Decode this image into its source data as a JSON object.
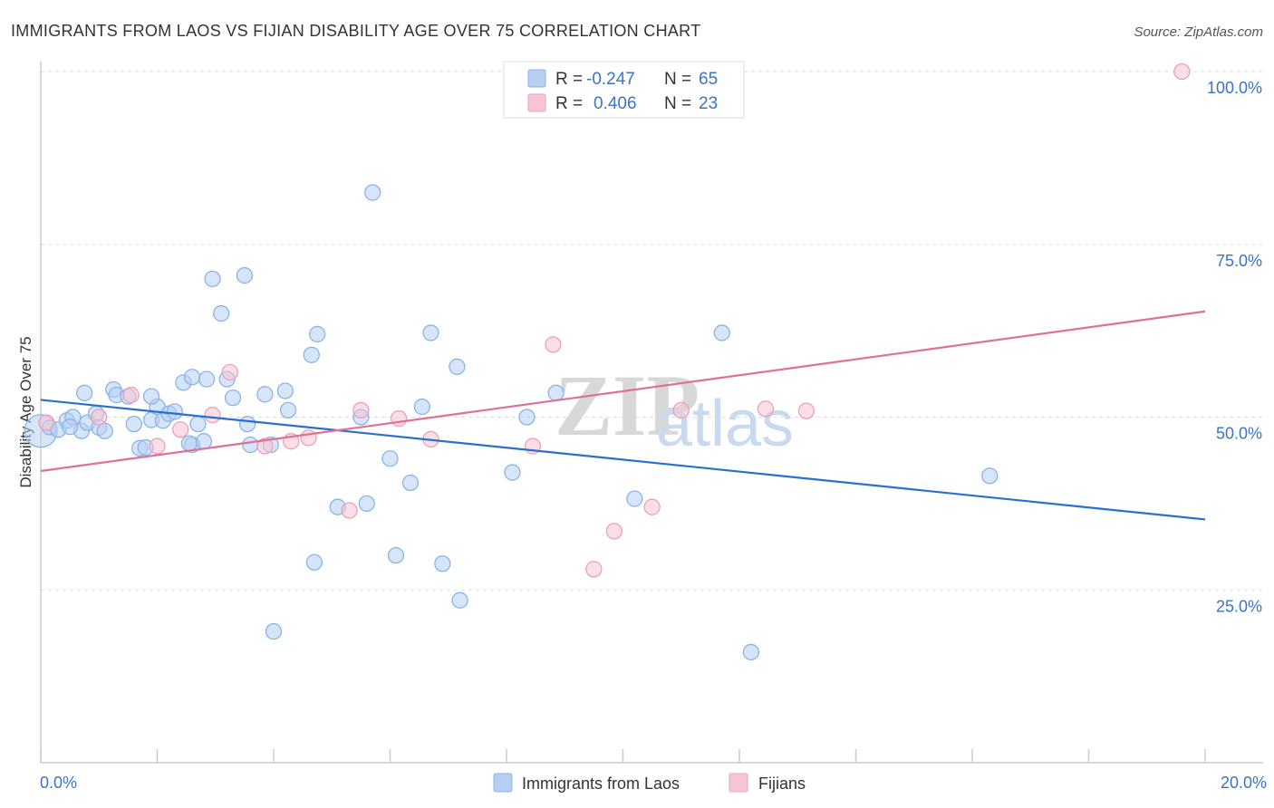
{
  "chart_data": {
    "type": "scatter",
    "title": "IMMIGRANTS FROM LAOS VS FIJIAN DISABILITY AGE OVER 75 CORRELATION CHART",
    "source": "Source: ZipAtlas.com",
    "xlabel": "",
    "ylabel": "Disability Age Over 75",
    "xlim": [
      0,
      20
    ],
    "ylim": [
      0,
      102
    ],
    "x_tick_labels": [
      "0.0%",
      "20.0%"
    ],
    "y_ticks": [
      25,
      50,
      75,
      100
    ],
    "y_tick_labels": [
      "25.0%",
      "50.0%",
      "75.0%",
      "100.0%"
    ],
    "grid": true,
    "watermark": {
      "zip": "ZIP",
      "atlas": "atlas"
    },
    "legend_top": [
      {
        "r_label": "R =",
        "r_value": "-0.247",
        "n_label": "N =",
        "n_value": "65"
      },
      {
        "r_label": "R =",
        "r_value": "0.406",
        "n_label": "N =",
        "n_value": "23"
      }
    ],
    "series": [
      {
        "name": "Immigrants from Laos",
        "color": "#8ab4e8",
        "fill": "#b7d0f2",
        "line_color": "#2a6fd0",
        "trend": {
          "x0": 0,
          "y0": 52.5,
          "x1": 20,
          "y1": 35.2
        },
        "points": [
          [
            0.0,
            48.0,
            22
          ],
          [
            0.15,
            48.5,
            12
          ],
          [
            0.3,
            48.2,
            10
          ],
          [
            0.45,
            49.5,
            10
          ],
          [
            0.55,
            50.0,
            10
          ],
          [
            0.7,
            48.0,
            10
          ],
          [
            0.8,
            49.2,
            10
          ],
          [
            0.95,
            50.5,
            10
          ],
          [
            1.0,
            48.5,
            10
          ],
          [
            0.75,
            53.5,
            10
          ],
          [
            1.25,
            54.0,
            10
          ],
          [
            1.3,
            53.2,
            10
          ],
          [
            1.5,
            53.0,
            10
          ],
          [
            1.6,
            49.0,
            10
          ],
          [
            1.7,
            45.5,
            10
          ],
          [
            1.8,
            45.6,
            10
          ],
          [
            1.9,
            49.6,
            10
          ],
          [
            2.0,
            51.5,
            10
          ],
          [
            2.1,
            49.5,
            10
          ],
          [
            2.2,
            50.5,
            10
          ],
          [
            2.3,
            50.8,
            10
          ],
          [
            2.45,
            55.0,
            10
          ],
          [
            2.6,
            46.0,
            10
          ],
          [
            2.6,
            55.8,
            10
          ],
          [
            2.7,
            49.0,
            10
          ],
          [
            2.8,
            46.5,
            10
          ],
          [
            2.85,
            55.5,
            10
          ],
          [
            2.95,
            70.0,
            10
          ],
          [
            3.1,
            65.0,
            10
          ],
          [
            3.2,
            55.5,
            10
          ],
          [
            3.3,
            52.8,
            10
          ],
          [
            3.5,
            70.5,
            10
          ],
          [
            3.55,
            49.0,
            10
          ],
          [
            3.6,
            46.0,
            10
          ],
          [
            3.85,
            53.3,
            10
          ],
          [
            3.95,
            46.0,
            10
          ],
          [
            4.2,
            53.8,
            10
          ],
          [
            4.25,
            51.0,
            10
          ],
          [
            4.65,
            59.0,
            10
          ],
          [
            4.75,
            62.0,
            10
          ],
          [
            5.1,
            37.0,
            10
          ],
          [
            5.5,
            50.0,
            10
          ],
          [
            5.6,
            37.5,
            10
          ],
          [
            5.7,
            82.5,
            10
          ],
          [
            6.0,
            44.0,
            10
          ],
          [
            6.1,
            30.0,
            10
          ],
          [
            6.35,
            40.5,
            10
          ],
          [
            6.55,
            51.5,
            10
          ],
          [
            6.7,
            62.2,
            10
          ],
          [
            6.9,
            28.8,
            10
          ],
          [
            7.15,
            57.3,
            10
          ],
          [
            7.2,
            23.5,
            10
          ],
          [
            4.0,
            19.0,
            10
          ],
          [
            4.7,
            29.0,
            10
          ],
          [
            8.1,
            42.0,
            10
          ],
          [
            8.35,
            50.0,
            10
          ],
          [
            8.85,
            53.5,
            10
          ],
          [
            10.2,
            38.2,
            10
          ],
          [
            11.7,
            62.2,
            10
          ],
          [
            12.2,
            16.0,
            10
          ],
          [
            16.3,
            41.5,
            10
          ],
          [
            1.1,
            48.0,
            10
          ],
          [
            0.5,
            48.6,
            10
          ],
          [
            2.55,
            46.2,
            10
          ],
          [
            1.9,
            53.0,
            10
          ]
        ]
      },
      {
        "name": "Fijians",
        "color": "#eda0b8",
        "fill": "#f6c4d3",
        "line_color": "#e0709a",
        "trend": {
          "x0": 0,
          "y0": 42.2,
          "x1": 20,
          "y1": 65.3
        },
        "points": [
          [
            0.1,
            49.2,
            10
          ],
          [
            1.0,
            50.0,
            10
          ],
          [
            1.55,
            53.2,
            10
          ],
          [
            2.0,
            45.8,
            10
          ],
          [
            2.4,
            48.2,
            10
          ],
          [
            2.95,
            50.3,
            10
          ],
          [
            3.25,
            56.5,
            10
          ],
          [
            3.85,
            45.8,
            10
          ],
          [
            4.3,
            46.5,
            10
          ],
          [
            4.6,
            47.0,
            10
          ],
          [
            5.3,
            36.5,
            10
          ],
          [
            5.5,
            51.0,
            10
          ],
          [
            6.15,
            49.8,
            10
          ],
          [
            6.7,
            46.8,
            10
          ],
          [
            8.45,
            45.8,
            10
          ],
          [
            8.8,
            60.5,
            10
          ],
          [
            9.5,
            28.0,
            10
          ],
          [
            9.85,
            33.5,
            10
          ],
          [
            10.5,
            37.0,
            10
          ],
          [
            11.0,
            51.0,
            10
          ],
          [
            12.45,
            51.2,
            10
          ],
          [
            13.15,
            50.9,
            10
          ],
          [
            19.6,
            100.0,
            10
          ]
        ]
      }
    ]
  }
}
